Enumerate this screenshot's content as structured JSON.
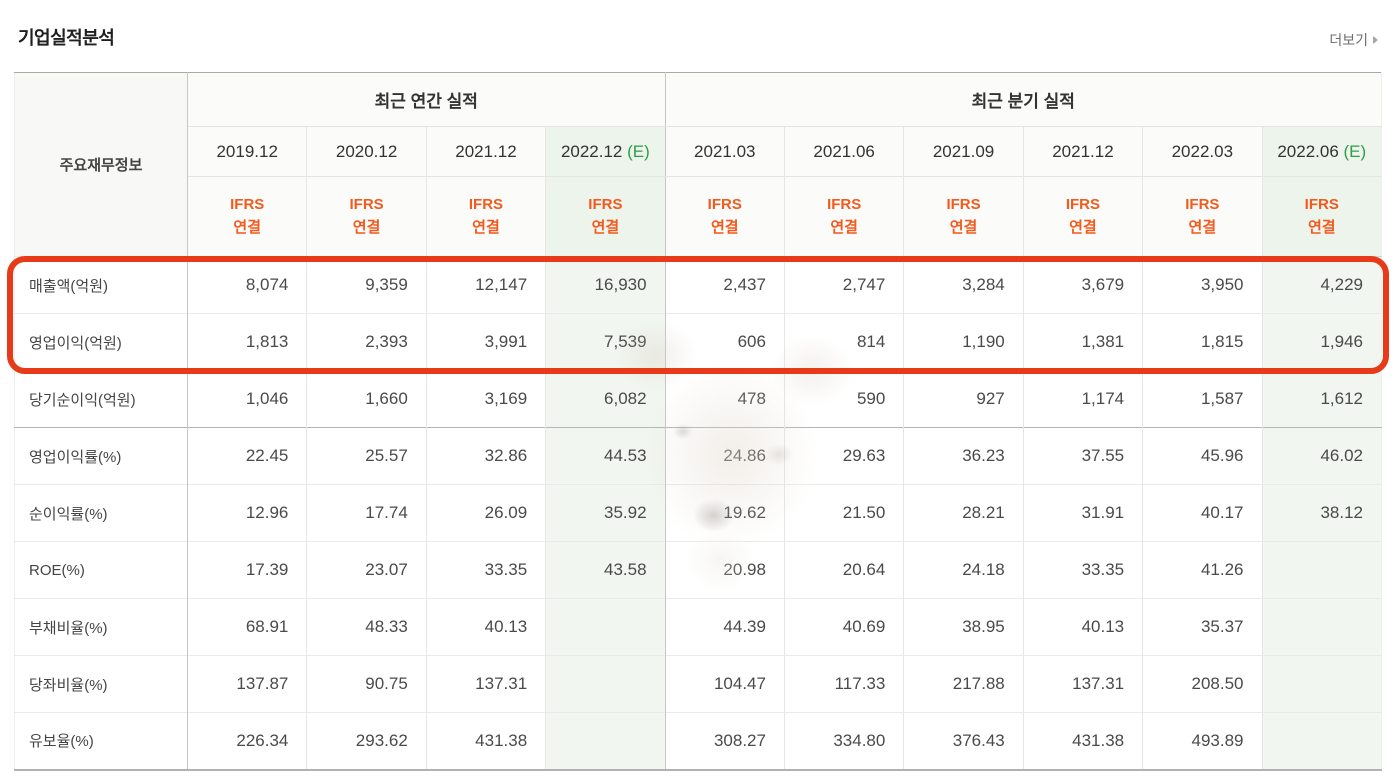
{
  "header": {
    "title": "기업실적분석",
    "more_label": "더보기"
  },
  "table": {
    "corner_label": "주요재무정보",
    "groups": [
      {
        "label": "최근 연간 실적",
        "span": 4
      },
      {
        "label": "최근 분기 실적",
        "span": 6
      }
    ],
    "columns": [
      {
        "period": "2019.12",
        "estimate": false
      },
      {
        "period": "2020.12",
        "estimate": false
      },
      {
        "period": "2021.12",
        "estimate": false
      },
      {
        "period": "2022.12",
        "estimate": true
      },
      {
        "period": "2021.03",
        "estimate": false
      },
      {
        "period": "2021.06",
        "estimate": false
      },
      {
        "period": "2021.09",
        "estimate": false
      },
      {
        "period": "2021.12",
        "estimate": false
      },
      {
        "period": "2022.03",
        "estimate": false
      },
      {
        "period": "2022.06",
        "estimate": true
      }
    ],
    "estimate_suffix": "(E)",
    "standard_label": "IFRS",
    "scope_label": "연결",
    "rows": [
      {
        "label": "매출액(억원)",
        "highlighted": true,
        "values": [
          "8,074",
          "9,359",
          "12,147",
          "16,930",
          "2,437",
          "2,747",
          "3,284",
          "3,679",
          "3,950",
          "4,229"
        ]
      },
      {
        "label": "영업이익(억원)",
        "highlighted": true,
        "values": [
          "1,813",
          "2,393",
          "3,991",
          "7,539",
          "606",
          "814",
          "1,190",
          "1,381",
          "1,815",
          "1,946"
        ]
      },
      {
        "label": "당기순이익(억원)",
        "highlighted": false,
        "values": [
          "1,046",
          "1,660",
          "3,169",
          "6,082",
          "478",
          "590",
          "927",
          "1,174",
          "1,587",
          "1,612"
        ]
      },
      {
        "label": "영업이익률(%)",
        "highlighted": false,
        "values": [
          "22.45",
          "25.57",
          "32.86",
          "44.53",
          "24.86",
          "29.63",
          "36.23",
          "37.55",
          "45.96",
          "46.02"
        ]
      },
      {
        "label": "순이익률(%)",
        "highlighted": false,
        "values": [
          "12.96",
          "17.74",
          "26.09",
          "35.92",
          "19.62",
          "21.50",
          "28.21",
          "31.91",
          "40.17",
          "38.12"
        ]
      },
      {
        "label": "ROE(%)",
        "highlighted": false,
        "values": [
          "17.39",
          "23.07",
          "33.35",
          "43.58",
          "20.98",
          "20.64",
          "24.18",
          "33.35",
          "41.26",
          ""
        ]
      },
      {
        "label": "부채비율(%)",
        "highlighted": false,
        "values": [
          "68.91",
          "48.33",
          "40.13",
          "",
          "44.39",
          "40.69",
          "38.95",
          "40.13",
          "35.37",
          ""
        ]
      },
      {
        "label": "당좌비율(%)",
        "highlighted": false,
        "values": [
          "137.87",
          "90.75",
          "137.31",
          "",
          "104.47",
          "117.33",
          "217.88",
          "137.31",
          "208.50",
          ""
        ]
      },
      {
        "label": "유보율(%)",
        "highlighted": false,
        "values": [
          "226.34",
          "293.62",
          "431.38",
          "",
          "308.27",
          "334.80",
          "376.43",
          "431.38",
          "493.89",
          ""
        ]
      }
    ],
    "colors": {
      "accent_orange": "#f25a1e",
      "estimate_green": "#2f9e49",
      "highlight_red": "#e73a18",
      "estimate_column_bg": "#f1f6f0"
    }
  }
}
